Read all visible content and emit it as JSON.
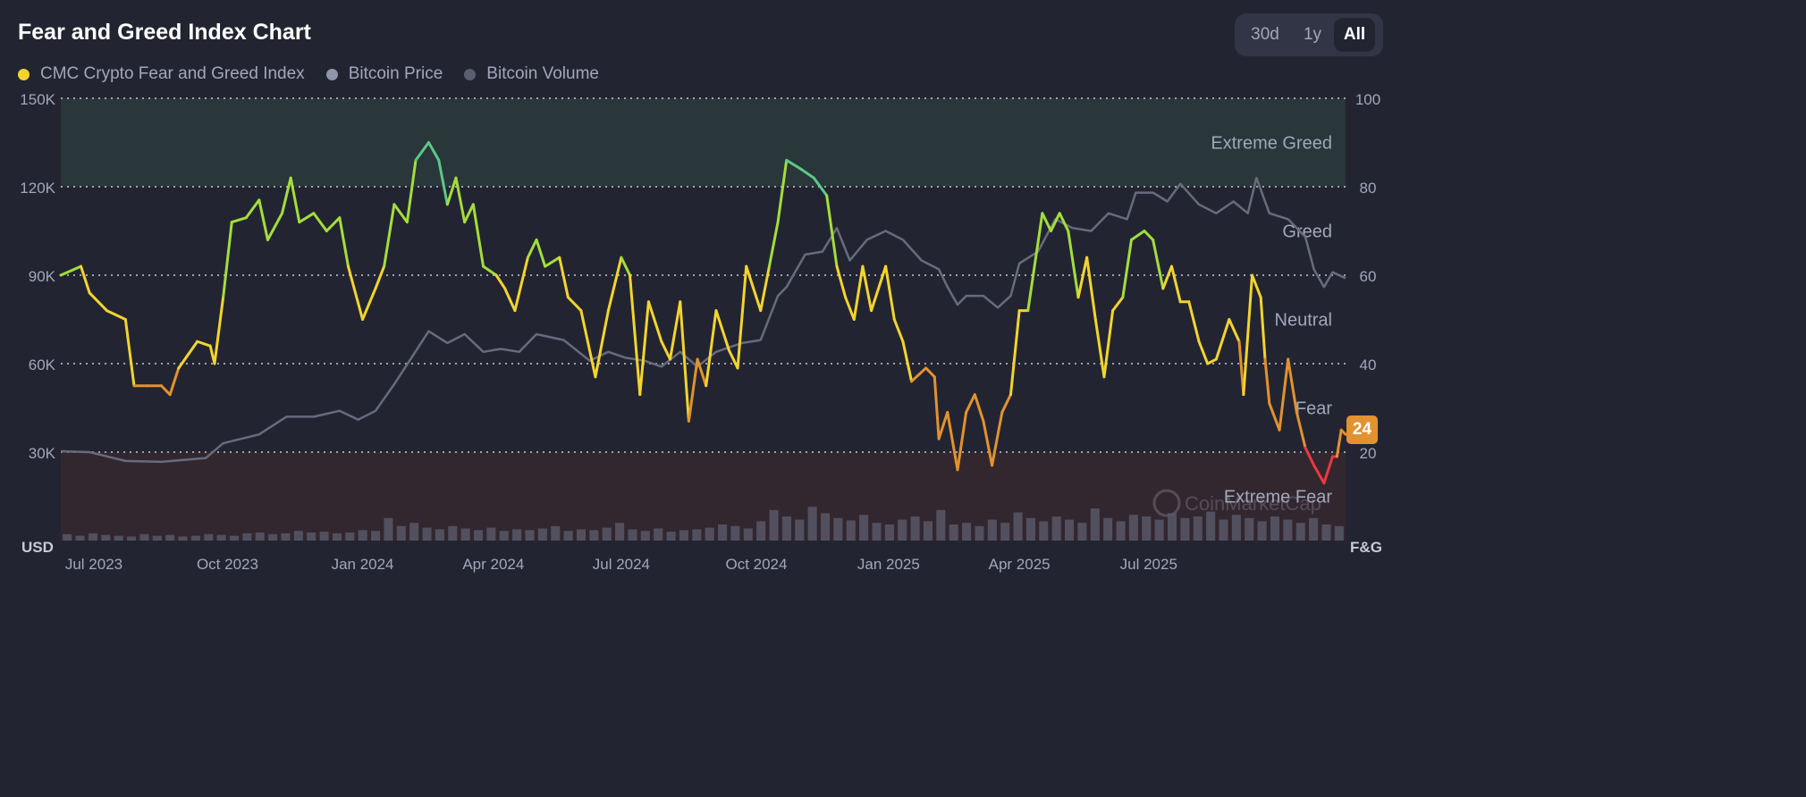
{
  "header": {
    "title": "Fear and Greed Index Chart"
  },
  "range_selector": {
    "options": [
      "30d",
      "1y",
      "All"
    ],
    "selected": "All"
  },
  "watermark": "CoinMarketCap",
  "chart_data": {
    "type": "line",
    "title": "Fear and Greed Index Chart",
    "legend": [
      {
        "name": "CMC Crypto Fear and Greed Index",
        "color": "#f3d42f"
      },
      {
        "name": "Bitcoin Price",
        "color": "#8f95a8"
      },
      {
        "name": "Bitcoin Volume",
        "color": "#5a5e70"
      }
    ],
    "legend_position": "top-left",
    "x_unit": "days since 2023-06-04",
    "x_range": [
      0,
      894
    ],
    "x_ticks": [
      {
        "label": "Jul 2023",
        "day": 23
      },
      {
        "label": "Oct 2023",
        "day": 116
      },
      {
        "label": "Jan 2024",
        "day": 210
      },
      {
        "label": "Apr 2024",
        "day": 301
      },
      {
        "label": "Jul 2024",
        "day": 390
      },
      {
        "label": "Oct 2024",
        "day": 484
      },
      {
        "label": "Jan 2025",
        "day": 576
      },
      {
        "label": "Apr 2025",
        "day": 667
      },
      {
        "label": "Jul 2025",
        "day": 757
      }
    ],
    "y_left": {
      "label": "USD",
      "range": [
        0,
        150000
      ],
      "ticks": [
        "150K",
        "120K",
        "90K",
        "60K",
        "30K"
      ],
      "tick_values": [
        150000,
        120000,
        90000,
        60000,
        30000
      ]
    },
    "y_right": {
      "label": "F&G",
      "range": [
        0,
        100
      ],
      "ticks": [
        "100",
        "80",
        "60",
        "40",
        "20"
      ],
      "tick_values": [
        100,
        80,
        60,
        40,
        20
      ]
    },
    "zones": [
      {
        "label": "Extreme Greed",
        "from": 80,
        "to": 100,
        "color": "#29363a"
      },
      {
        "label": "Greed",
        "from": 60,
        "to": 80
      },
      {
        "label": "Neutral",
        "from": 40,
        "to": 60
      },
      {
        "label": "Fear",
        "from": 20,
        "to": 40
      },
      {
        "label": "Extreme Fear",
        "from": 0,
        "to": 20,
        "color": "#33272f"
      }
    ],
    "level_colors": {
      "extreme_fear": "#ea3943",
      "fear": "#e2922e",
      "neutral": "#f3d42f",
      "greed": "#a4dd3c",
      "extreme_greed": "#5cc887"
    },
    "current_value": "24",
    "series": [
      {
        "name": "CMC Crypto Fear and Greed Index",
        "axis": "right",
        "points": [
          [
            0,
            60
          ],
          [
            14,
            62
          ],
          [
            20,
            56
          ],
          [
            32,
            52
          ],
          [
            45,
            50
          ],
          [
            51,
            35
          ],
          [
            60,
            35
          ],
          [
            70,
            35
          ],
          [
            76,
            33
          ],
          [
            82,
            39
          ],
          [
            95,
            45
          ],
          [
            104,
            44
          ],
          [
            107,
            40
          ],
          [
            113,
            55
          ],
          [
            119,
            72
          ],
          [
            129,
            73
          ],
          [
            138,
            77
          ],
          [
            144,
            68
          ],
          [
            154,
            74
          ],
          [
            160,
            82
          ],
          [
            166,
            72
          ],
          [
            176,
            74
          ],
          [
            185,
            70
          ],
          [
            194,
            73
          ],
          [
            200,
            62
          ],
          [
            210,
            50
          ],
          [
            219,
            57
          ],
          [
            225,
            62
          ],
          [
            232,
            76
          ],
          [
            241,
            72
          ],
          [
            247,
            86
          ],
          [
            256,
            90
          ],
          [
            263,
            86
          ],
          [
            269,
            76
          ],
          [
            275,
            82
          ],
          [
            281,
            72
          ],
          [
            287,
            76
          ],
          [
            294,
            62
          ],
          [
            303,
            60
          ],
          [
            309,
            57
          ],
          [
            316,
            52
          ],
          [
            325,
            64
          ],
          [
            331,
            68
          ],
          [
            337,
            62
          ],
          [
            347,
            64
          ],
          [
            353,
            55
          ],
          [
            362,
            52
          ],
          [
            372,
            37
          ],
          [
            381,
            52
          ],
          [
            390,
            64
          ],
          [
            396,
            60
          ],
          [
            403,
            33
          ],
          [
            409,
            54
          ],
          [
            418,
            45
          ],
          [
            424,
            41
          ],
          [
            431,
            54
          ],
          [
            437,
            27
          ],
          [
            443,
            41
          ],
          [
            449,
            35
          ],
          [
            456,
            52
          ],
          [
            465,
            43
          ],
          [
            471,
            39
          ],
          [
            477,
            62
          ],
          [
            487,
            52
          ],
          [
            493,
            62
          ],
          [
            499,
            72
          ],
          [
            505,
            86
          ],
          [
            515,
            84
          ],
          [
            524,
            82
          ],
          [
            533,
            78
          ],
          [
            540,
            62
          ],
          [
            546,
            55
          ],
          [
            552,
            50
          ],
          [
            558,
            62
          ],
          [
            564,
            52
          ],
          [
            574,
            62
          ],
          [
            580,
            50
          ],
          [
            586,
            45
          ],
          [
            592,
            36
          ],
          [
            602,
            39
          ],
          [
            608,
            37
          ],
          [
            611,
            23
          ],
          [
            617,
            29
          ],
          [
            624,
            16
          ],
          [
            630,
            29
          ],
          [
            636,
            33
          ],
          [
            642,
            27
          ],
          [
            648,
            17
          ],
          [
            655,
            29
          ],
          [
            661,
            33
          ],
          [
            667,
            52
          ],
          [
            673,
            52
          ],
          [
            683,
            74
          ],
          [
            689,
            70
          ],
          [
            695,
            74
          ],
          [
            701,
            70
          ],
          [
            708,
            55
          ],
          [
            714,
            64
          ],
          [
            720,
            50
          ],
          [
            726,
            37
          ],
          [
            732,
            52
          ],
          [
            739,
            55
          ],
          [
            745,
            68
          ],
          [
            754,
            70
          ],
          [
            760,
            68
          ],
          [
            767,
            57
          ],
          [
            773,
            62
          ],
          [
            779,
            54
          ],
          [
            785,
            54
          ],
          [
            792,
            45
          ],
          [
            798,
            40
          ],
          [
            804,
            41
          ],
          [
            813,
            50
          ],
          [
            820,
            45
          ],
          [
            823,
            33
          ],
          [
            829,
            60
          ],
          [
            835,
            55
          ],
          [
            838,
            41
          ],
          [
            841,
            31
          ],
          [
            848,
            25
          ],
          [
            854,
            41
          ],
          [
            860,
            29
          ],
          [
            866,
            21
          ],
          [
            872,
            17
          ],
          [
            879,
            13
          ],
          [
            885,
            19
          ],
          [
            888,
            19
          ],
          [
            891,
            25
          ],
          [
            894,
            24
          ]
        ]
      },
      {
        "name": "Bitcoin Price",
        "axis": "left",
        "points": [
          [
            0,
            30300
          ],
          [
            20,
            30000
          ],
          [
            45,
            27000
          ],
          [
            70,
            26700
          ],
          [
            101,
            28000
          ],
          [
            113,
            33000
          ],
          [
            138,
            36000
          ],
          [
            157,
            42000
          ],
          [
            176,
            42000
          ],
          [
            194,
            44000
          ],
          [
            207,
            41000
          ],
          [
            219,
            44000
          ],
          [
            232,
            53000
          ],
          [
            244,
            62000
          ],
          [
            256,
            71000
          ],
          [
            269,
            67000
          ],
          [
            281,
            70000
          ],
          [
            294,
            64000
          ],
          [
            306,
            65000
          ],
          [
            319,
            64000
          ],
          [
            331,
            70000
          ],
          [
            350,
            68000
          ],
          [
            368,
            61000
          ],
          [
            381,
            64000
          ],
          [
            393,
            62000
          ],
          [
            406,
            61000
          ],
          [
            418,
            59000
          ],
          [
            431,
            64000
          ],
          [
            443,
            59000
          ],
          [
            456,
            64000
          ],
          [
            474,
            67000
          ],
          [
            487,
            68000
          ],
          [
            499,
            83000
          ],
          [
            505,
            86000
          ],
          [
            518,
            97000
          ],
          [
            530,
            98000
          ],
          [
            540,
            106000
          ],
          [
            549,
            95000
          ],
          [
            561,
            102000
          ],
          [
            574,
            105000
          ],
          [
            586,
            102000
          ],
          [
            599,
            95000
          ],
          [
            611,
            92000
          ],
          [
            617,
            86000
          ],
          [
            624,
            80000
          ],
          [
            630,
            83000
          ],
          [
            642,
            83000
          ],
          [
            652,
            79000
          ],
          [
            661,
            83000
          ],
          [
            667,
            94000
          ],
          [
            680,
            98000
          ],
          [
            692,
            109000
          ],
          [
            704,
            106000
          ],
          [
            717,
            105000
          ],
          [
            729,
            111000
          ],
          [
            742,
            109000
          ],
          [
            748,
            118000
          ],
          [
            760,
            118000
          ],
          [
            770,
            115000
          ],
          [
            779,
            121000
          ],
          [
            792,
            114000
          ],
          [
            804,
            111000
          ],
          [
            816,
            115000
          ],
          [
            826,
            111000
          ],
          [
            832,
            123000
          ],
          [
            841,
            111000
          ],
          [
            854,
            109000
          ],
          [
            866,
            103000
          ],
          [
            872,
            92000
          ],
          [
            879,
            86000
          ],
          [
            885,
            91000
          ],
          [
            894,
            89000
          ]
        ]
      },
      {
        "name": "Bitcoin Volume",
        "axis": "volume",
        "unit": "relative",
        "values": [
          8,
          6,
          9,
          7,
          6,
          5,
          8,
          6,
          7,
          5,
          6,
          8,
          7,
          6,
          9,
          10,
          8,
          9,
          12,
          10,
          11,
          9,
          10,
          13,
          12,
          28,
          18,
          22,
          16,
          14,
          18,
          15,
          13,
          16,
          12,
          14,
          13,
          15,
          18,
          12,
          14,
          13,
          16,
          22,
          14,
          12,
          15,
          11,
          13,
          14,
          16,
          20,
          18,
          15,
          24,
          38,
          30,
          26,
          42,
          34,
          28,
          25,
          32,
          22,
          20,
          26,
          30,
          24,
          38,
          20,
          22,
          18,
          26,
          22,
          35,
          28,
          24,
          30,
          26,
          22,
          40,
          28,
          24,
          32,
          30,
          26,
          34,
          28,
          30,
          36,
          26,
          32,
          28,
          24,
          30,
          26,
          22,
          28,
          20,
          18
        ]
      }
    ]
  }
}
